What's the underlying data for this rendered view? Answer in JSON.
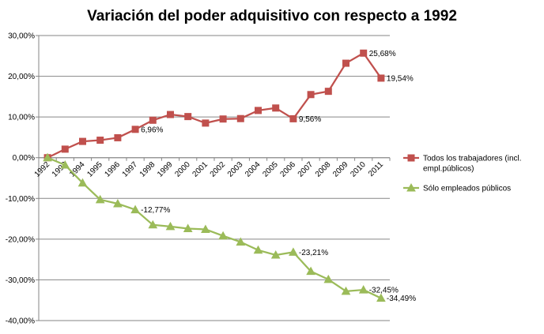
{
  "chart_data": {
    "type": "line",
    "title": "Variación del poder adquisitivo con respecto a 1992",
    "categories": [
      "1992",
      "1993",
      "1994",
      "1995",
      "1996",
      "1997",
      "1998",
      "1999",
      "2000",
      "2001",
      "2002",
      "2003",
      "2004",
      "2005",
      "2006",
      "2007",
      "2008",
      "2009",
      "2010",
      "2011"
    ],
    "ylim": [
      -40,
      30
    ],
    "y_ticks": [
      "30,00%",
      "20,00%",
      "10,00%",
      "0,00%",
      "-10,00%",
      "-20,00%",
      "-30,00%",
      "-40,00%"
    ],
    "grid": true,
    "legend_position": "right",
    "series": [
      {
        "name": "Todos los trabajadores (incl. empl.públicos)",
        "color": "#c0504d",
        "marker": "square",
        "values": [
          0,
          2.1,
          4.0,
          4.3,
          4.9,
          6.96,
          9.2,
          10.6,
          10.1,
          8.5,
          9.5,
          9.6,
          11.6,
          12.2,
          9.56,
          15.5,
          16.3,
          23.2,
          25.68,
          19.54
        ]
      },
      {
        "name": "Sólo empleados públicos",
        "color": "#9bbb59",
        "marker": "triangle",
        "values": [
          0,
          -1.8,
          -6.2,
          -10.3,
          -11.3,
          -12.77,
          -16.5,
          -16.9,
          -17.4,
          -17.6,
          -19.2,
          -20.7,
          -22.7,
          -23.9,
          -23.21,
          -27.9,
          -29.9,
          -32.8,
          -32.45,
          -34.49
        ]
      }
    ],
    "annotations": [
      {
        "series": 0,
        "index": 5,
        "text": "6,96%"
      },
      {
        "series": 0,
        "index": 14,
        "text": "9,56%"
      },
      {
        "series": 0,
        "index": 18,
        "text": "25,68%"
      },
      {
        "series": 0,
        "index": 19,
        "text": "19,54%"
      },
      {
        "series": 1,
        "index": 5,
        "text": "-12,77%"
      },
      {
        "series": 1,
        "index": 14,
        "text": "-23,21%"
      },
      {
        "series": 1,
        "index": 18,
        "text": "-32,45%"
      },
      {
        "series": 1,
        "index": 19,
        "text": "-34,49%"
      }
    ]
  }
}
